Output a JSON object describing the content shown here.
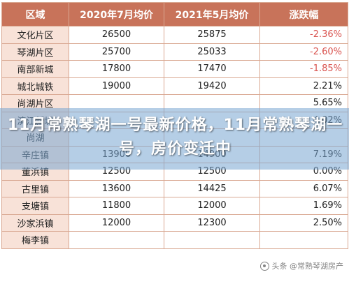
{
  "table": {
    "headers": [
      "区域",
      "2020年7月均价",
      "2021年5月均价",
      "涨跌幅"
    ],
    "rows": [
      {
        "district": "文化片区",
        "price_2020_07": "26500",
        "price_2021_05": "25875",
        "change": "-2.36%",
        "negative": true
      },
      {
        "district": "琴湖片区",
        "price_2020_07": "25700",
        "price_2021_05": "25033",
        "change": "-2.60%",
        "negative": true
      },
      {
        "district": "南部新城",
        "price_2020_07": "17800",
        "price_2021_05": "17470",
        "change": "-1.85%",
        "negative": true
      },
      {
        "district": "城北城铁",
        "price_2020_07": "19000",
        "price_2021_05": "19420",
        "change": "2.21%",
        "negative": false
      },
      {
        "district": "尚湖片区",
        "price_2020_07": "",
        "price_2021_05": "",
        "change": "5.65%",
        "negative": false
      },
      {
        "district": "滨江新城",
        "price_2020_07": "",
        "price_2021_05": "",
        "change": "4.02%",
        "negative": false
      },
      {
        "district": "尚湖",
        "price_2020_07": "",
        "price_2021_05": "",
        "change": "",
        "negative": false
      },
      {
        "district": "辛庄镇",
        "price_2020_07": "13900",
        "price_2021_05": "14900",
        "change": "7.19%",
        "negative": false
      },
      {
        "district": "董浜镇",
        "price_2020_07": "12500",
        "price_2021_05": "12500",
        "change": "0.00%",
        "negative": false
      },
      {
        "district": "古里镇",
        "price_2020_07": "13600",
        "price_2021_05": "14425",
        "change": "6.07%",
        "negative": false
      },
      {
        "district": "支塘镇",
        "price_2020_07": "11800",
        "price_2021_05": "12000",
        "change": "1.69%",
        "negative": false
      },
      {
        "district": "沙家浜镇",
        "price_2020_07": "12000",
        "price_2021_05": "12300",
        "change": "2.50%",
        "negative": false
      },
      {
        "district": "梅李镇",
        "price_2020_07": "",
        "price_2021_05": "",
        "change": "",
        "negative": false
      }
    ]
  },
  "headline": "11月常熟琴湖一号最新价格，11月常熟琴湖一号，房价变迁中",
  "watermark": {
    "text": "头条 @常熟琴湖房产"
  },
  "colors": {
    "header_bg": "#c8735a",
    "district_bg": "#f8e2d8",
    "negative": "#d9534f",
    "overlay": "#78a5d2"
  }
}
